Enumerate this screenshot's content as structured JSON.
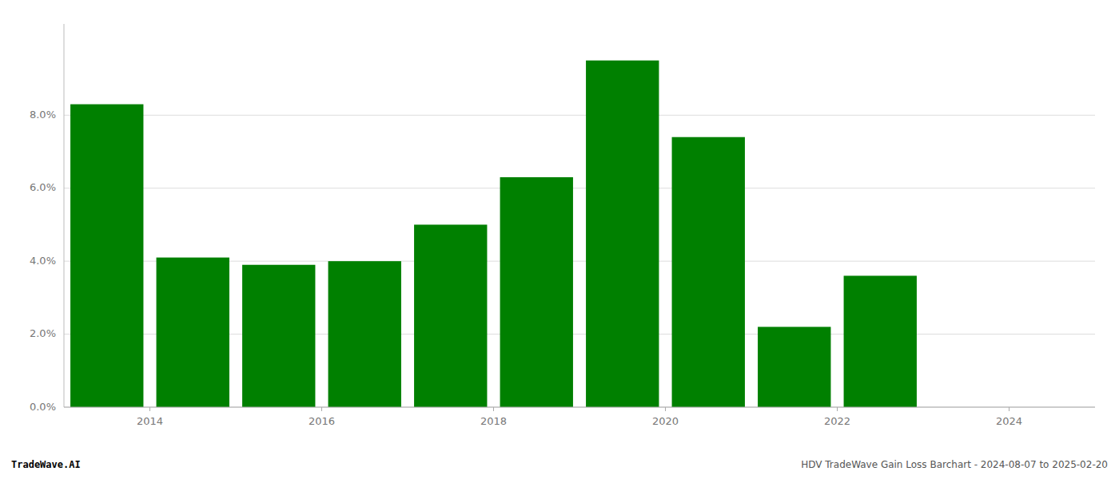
{
  "chart_data": {
    "type": "bar",
    "x": [
      2013.5,
      2014.5,
      2015.5,
      2016.5,
      2017.5,
      2018.5,
      2019.5,
      2020.5,
      2021.5,
      2022.5,
      2023.5
    ],
    "values": [
      0.083,
      0.041,
      0.039,
      0.04,
      0.05,
      0.063,
      0.095,
      0.074,
      0.022,
      0.036,
      0.0
    ],
    "color": "#008000",
    "xlim": [
      2013.0,
      2025.0
    ],
    "ylim": [
      0.0,
      0.105
    ],
    "xticks": [
      2014,
      2016,
      2018,
      2020,
      2022,
      2024
    ],
    "yticks": [
      {
        "value": 0.0,
        "label": "0.0%"
      },
      {
        "value": 0.02,
        "label": "2.0%"
      },
      {
        "value": 0.04,
        "label": "4.0%"
      },
      {
        "value": 0.06,
        "label": "6.0%"
      },
      {
        "value": 0.08,
        "label": "8.0%"
      }
    ],
    "grid": true,
    "annotations": [
      "TradeWave.AI",
      "HDV TradeWave Gain Loss Barchart - 2024-08-07 to 2025-02-20"
    ]
  }
}
